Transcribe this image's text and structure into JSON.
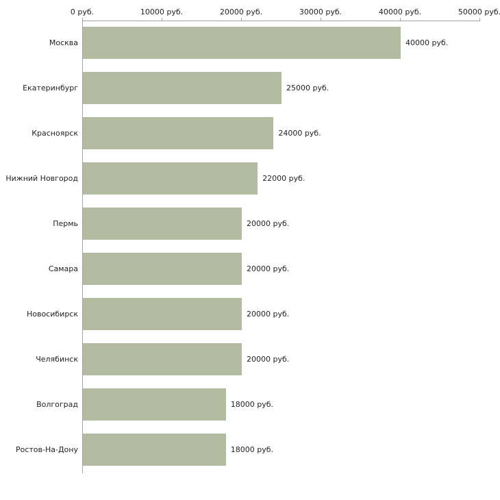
{
  "chart_data": {
    "type": "bar",
    "orientation": "horizontal",
    "title": "",
    "xlabel": "",
    "ylabel": "",
    "categories": [
      "Москва",
      "Екатеринбург",
      "Красноярск",
      "Нижний Новгород",
      "Пермь",
      "Самара",
      "Новосибирск",
      "Челябинск",
      "Волгоград",
      "Ростов-На-Дону"
    ],
    "values": [
      40000,
      25000,
      24000,
      22000,
      20000,
      20000,
      20000,
      20000,
      18000,
      18000
    ],
    "value_labels": [
      "40000 руб.",
      "25000 руб.",
      "24000 руб.",
      "22000 руб.",
      "20000 руб.",
      "20000 руб.",
      "20000 руб.",
      "20000 руб.",
      "18000 руб.",
      "18000 руб."
    ],
    "x_ticks": [
      "0 руб.",
      "10000 руб.",
      "20000 руб.",
      "30000 руб.",
      "40000 руб.",
      "50000 руб."
    ],
    "x_tick_values": [
      0,
      10000,
      20000,
      30000,
      40000,
      50000
    ],
    "xlim": [
      0,
      50000
    ],
    "grid": false,
    "legend": false,
    "colors": {
      "bar_fill": "#b3bba1",
      "axis": "#a3a3a3",
      "text": "#222222",
      "background": "#ffffff"
    }
  }
}
